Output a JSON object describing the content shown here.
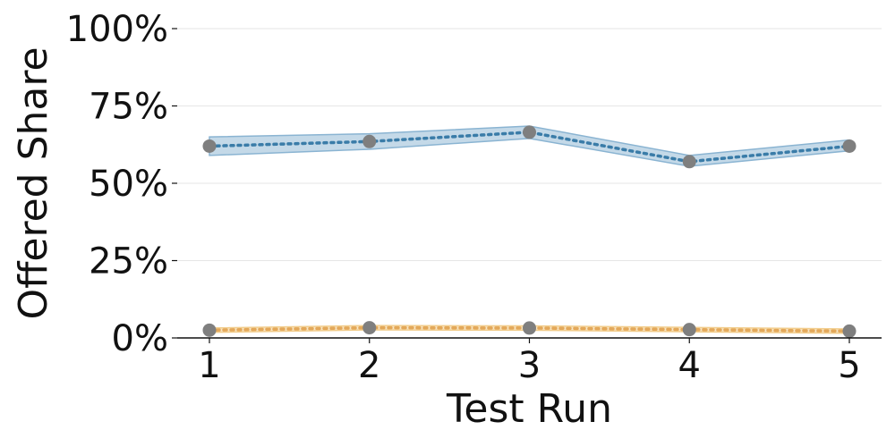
{
  "chart_data": {
    "type": "line",
    "title": "",
    "xlabel": "Test Run",
    "ylabel": "Offered Share",
    "x": [
      1,
      2,
      3,
      4,
      5
    ],
    "x_ticks": [
      "1",
      "2",
      "3",
      "4",
      "5"
    ],
    "ylim": [
      0,
      100
    ],
    "y_ticks": [
      0,
      25,
      50,
      75,
      100
    ],
    "y_tick_labels": [
      "0%",
      "25%",
      "50%",
      "75%",
      "100%"
    ],
    "grid": "horizontal",
    "legend": "none",
    "series": [
      {
        "values": [
          62,
          63.5,
          66.5,
          57,
          62
        ],
        "band_low": [
          59,
          61,
          64.5,
          55.5,
          60.5
        ],
        "band_high": [
          65,
          66,
          68.5,
          59,
          64
        ],
        "line_color": "#3a7ca8",
        "band_color": "#8ab4d2",
        "line_style": "dotted"
      },
      {
        "values": [
          2.5,
          3.3,
          3.2,
          2.7,
          2.2
        ],
        "band_low": [
          1.8,
          2.6,
          2.5,
          2.0,
          1.5
        ],
        "band_high": [
          3.2,
          4.0,
          3.9,
          3.4,
          2.9
        ],
        "line_color": "#e3a85a",
        "band_color": "#f2cd8c",
        "line_style": "dotted"
      }
    ],
    "marker_color": "#7f7f7f"
  }
}
